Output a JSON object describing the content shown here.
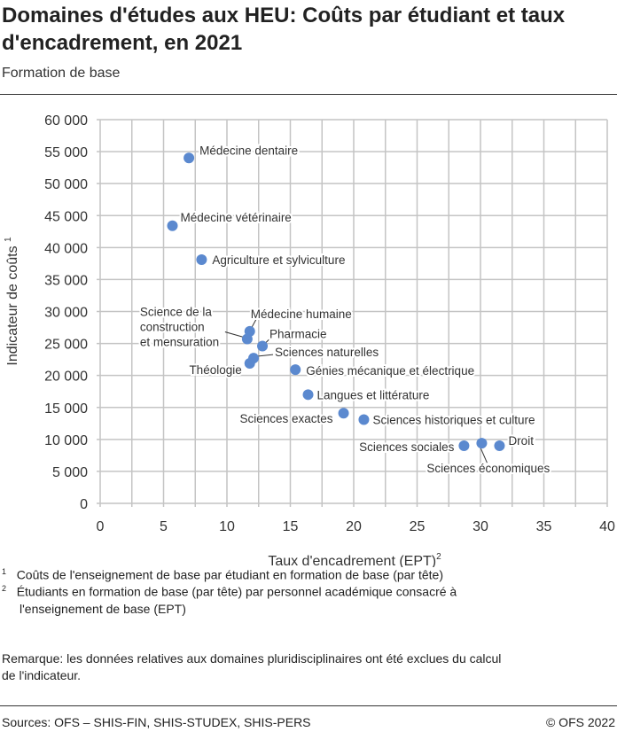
{
  "title": "Domaines d'études aux HEU: Coûts par étudiant et taux d'encadrement, en 2021",
  "subtitle": "Formation de base",
  "footnotes": [
    {
      "mark": "1",
      "text": "Coûts de l'enseignement de base par étudiant en formation de base (par tête)"
    },
    {
      "mark": "2",
      "text": "Étudiants en formation de base (par tête) par personnel académique consacré à l'enseignement de base (EPT)"
    }
  ],
  "remark": "Remarque: les données relatives aux domaines pluridisciplinaires ont été exclues du calcul de l'indicateur.",
  "sources": "Sources: OFS – SHIS-FIN, SHIS-STUDEX, SHIS-PERS",
  "copyright": "© OFS 2022",
  "chart_data": {
    "type": "scatter",
    "xlabel": "Taux d'encadrement (EPT)",
    "xlabel_sup": "2",
    "ylabel": "Indicateur de coûts 1",
    "ylabel_sup": "1",
    "xlim": [
      0,
      40
    ],
    "ylim": [
      0,
      60000
    ],
    "xticks": [
      0,
      5,
      10,
      15,
      20,
      25,
      30,
      35,
      40
    ],
    "yticks": [
      0,
      5000,
      10000,
      15000,
      20000,
      25000,
      30000,
      35000,
      40000,
      45000,
      50000,
      55000,
      60000
    ],
    "ytick_labels": [
      "0",
      "5 000",
      "10 000",
      "15 000",
      "20 000",
      "25 000",
      "30 000",
      "35 000",
      "40 000",
      "45 000",
      "50 000",
      "55 000",
      "60 000"
    ],
    "grid": true,
    "color": "#5b89cf",
    "points": [
      {
        "label": "Médecine dentaire",
        "x": 7.0,
        "y": 54000
      },
      {
        "label": "Médecine vétérinaire",
        "x": 5.7,
        "y": 43400
      },
      {
        "label": "Agriculture et sylviculture",
        "x": 8.0,
        "y": 38100
      },
      {
        "label": "Médecine humaine",
        "x": 11.8,
        "y": 26900
      },
      {
        "label": "Science de la construction et mensuration",
        "x": 11.6,
        "y": 25700
      },
      {
        "label": "Pharmacie",
        "x": 12.8,
        "y": 24600
      },
      {
        "label": "Sciences naturelles",
        "x": 12.1,
        "y": 22700
      },
      {
        "label": "Théologie",
        "x": 11.8,
        "y": 21900
      },
      {
        "label": "Génies mécanique et électrique",
        "x": 15.4,
        "y": 20900
      },
      {
        "label": "Langues et littérature",
        "x": 16.4,
        "y": 17000
      },
      {
        "label": "Sciences exactes",
        "x": 19.2,
        "y": 14100
      },
      {
        "label": "Sciences historiques et culture",
        "x": 20.8,
        "y": 13100
      },
      {
        "label": "Sciences sociales",
        "x": 28.7,
        "y": 9000
      },
      {
        "label": "Sciences économiques",
        "x": 30.1,
        "y": 9400
      },
      {
        "label": "Droit",
        "x": 31.5,
        "y": 9000
      }
    ]
  }
}
